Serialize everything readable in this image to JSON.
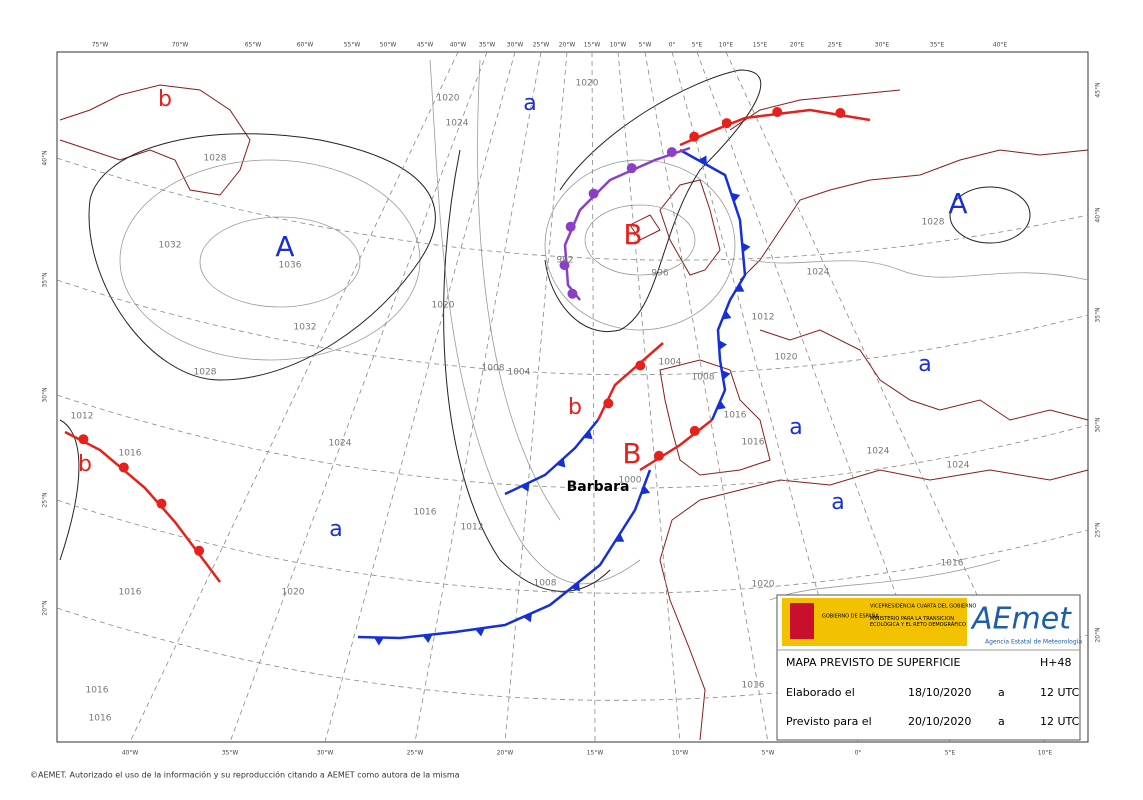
{
  "map": {
    "top_lon_labels": [
      "75°W",
      "70°W",
      "65°W",
      "60°W",
      "55°W",
      "50°W",
      "45°W",
      "40°W",
      "35°W",
      "30°W",
      "25°W",
      "20°W",
      "15°W",
      "10°W",
      "5°W",
      "0°",
      "5°E",
      "10°E",
      "15°E",
      "20°E",
      "25°E",
      "30°E",
      "35°E",
      "40°E"
    ],
    "bottom_lon_labels": [
      "40°W",
      "35°W",
      "30°W",
      "25°W",
      "20°W",
      "15°W",
      "10°W",
      "5°W",
      "0°",
      "5°E",
      "10°E"
    ],
    "left_lat_labels": [
      "40°N",
      "35°N",
      "30°N",
      "25°N",
      "20°N"
    ],
    "right_lat_labels": [
      "45°N",
      "40°N",
      "35°N",
      "30°N",
      "25°N",
      "20°N"
    ],
    "pressure_centers": [
      "b",
      "A",
      "a",
      "B",
      "b",
      "B",
      "a",
      "a",
      "a",
      "a",
      "b",
      "A"
    ],
    "isobar_labels": [
      "1028",
      "1032",
      "1036",
      "1032",
      "1028",
      "1012",
      "1016",
      "1024",
      "1020",
      "1024",
      "1020",
      "1016",
      "1012",
      "1008",
      "1016",
      "1020",
      "1008",
      "1004",
      "1004",
      "996",
      "992",
      "1000",
      "1008",
      "1012",
      "1016",
      "1016",
      "1020",
      "1024",
      "1024",
      "1024",
      "1020",
      "1016",
      "1016",
      "1016",
      "1016",
      "1028",
      "1020"
    ],
    "storm_name": "Barbara"
  },
  "info_box": {
    "gov_label": "GOBIERNO DE ESPAÑA",
    "vice_label": "VICEPRESIDENCIA CUARTA DEL GOBIERNO",
    "ministry_label": "MINISTERIO PARA LA TRANSICIÓN ECOLÓGICA Y EL RETO DEMOGRÁFICO",
    "brand": "AEmet",
    "brand_subtitle": "Agencia Estatal de Meteorología",
    "title": "MAPA PREVISTO DE SUPERFICIE",
    "lead_time": "H+48",
    "rows": [
      [
        "Elaborado el",
        "18/10/2020",
        "a",
        "12 UTC"
      ],
      [
        "Previsto para el",
        "20/10/2020",
        "a",
        "12 UTC"
      ]
    ]
  },
  "footer": "©AEMET. Autorizado el uso de la información y su reproducción citando a AEMET como autora de la misma"
}
